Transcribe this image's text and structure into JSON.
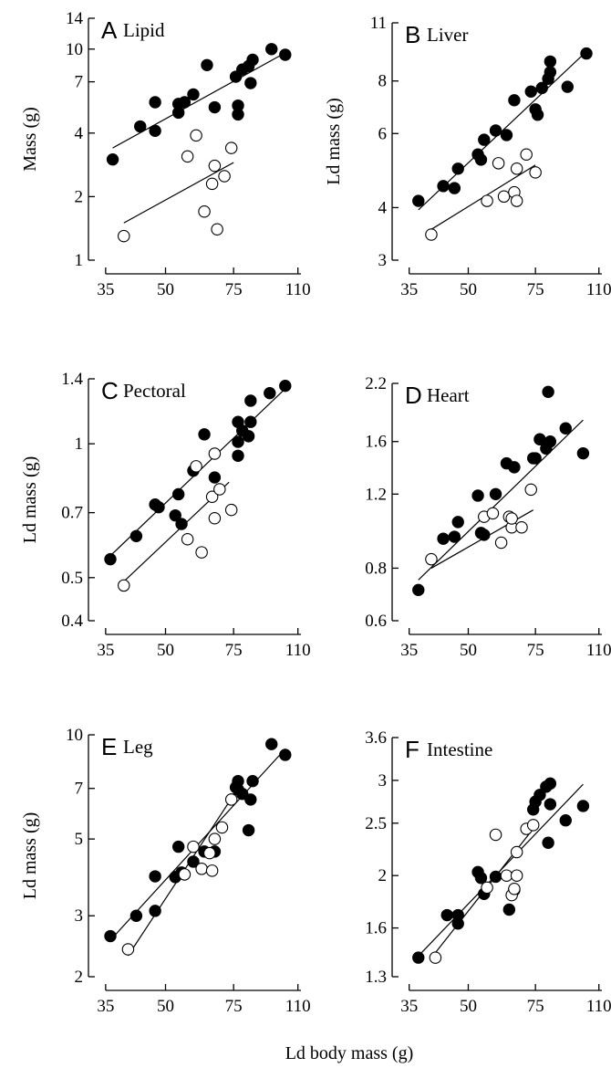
{
  "figure": {
    "shared_xlabel": "Ld body mass (g)"
  },
  "chart_data": [
    {
      "type": "scatter",
      "panel_letter": "A",
      "panel_name": "Lipid",
      "ylabel": "Mass (g)",
      "x_scale": "log",
      "y_scale": "log",
      "xlim": [
        33,
        112
      ],
      "ylim": [
        1,
        14
      ],
      "x_ticks": [
        35,
        50,
        75,
        110
      ],
      "y_ticks": [
        1,
        2,
        4,
        7,
        10,
        14
      ],
      "series": [
        {
          "marker": "filled",
          "points": [
            [
              36.5,
              3.0
            ],
            [
              43,
              4.3
            ],
            [
              47,
              5.6
            ],
            [
              47,
              4.1
            ],
            [
              54,
              5.5
            ],
            [
              54,
              5.0
            ],
            [
              56,
              5.6
            ],
            [
              59,
              6.1
            ],
            [
              64,
              8.4
            ],
            [
              67,
              5.3
            ],
            [
              76,
              7.4
            ],
            [
              77,
              5.4
            ],
            [
              77,
              4.9
            ],
            [
              79,
              8.0
            ],
            [
              82,
              8.3
            ],
            [
              83,
              6.9
            ],
            [
              84,
              8.9
            ],
            [
              94,
              10.0
            ],
            [
              102,
              9.4
            ]
          ],
          "fit": [
            [
              36.5,
              3.4
            ],
            [
              102,
              9.6
            ]
          ]
        },
        {
          "marker": "open",
          "points": [
            [
              39,
              1.3
            ],
            [
              57,
              3.1
            ],
            [
              60,
              3.9
            ],
            [
              63,
              1.7
            ],
            [
              66,
              2.3
            ],
            [
              67,
              2.8
            ],
            [
              68,
              1.4
            ],
            [
              71,
              2.5
            ],
            [
              74,
              3.4
            ]
          ],
          "fit": [
            [
              39,
              1.5
            ],
            [
              75,
              2.9
            ]
          ]
        }
      ]
    },
    {
      "type": "scatter",
      "panel_letter": "B",
      "panel_name": "Liver",
      "ylabel": "Ld  mass (g)",
      "x_scale": "log",
      "y_scale": "log",
      "xlim": [
        33,
        112
      ],
      "ylim": [
        3,
        11
      ],
      "x_ticks": [
        35,
        50,
        75,
        110
      ],
      "y_ticks": [
        3,
        4,
        6,
        8,
        11
      ],
      "series": [
        {
          "marker": "filled",
          "points": [
            [
              37,
              4.15
            ],
            [
              43,
              4.5
            ],
            [
              46,
              4.45
            ],
            [
              47,
              4.95
            ],
            [
              53,
              5.35
            ],
            [
              54,
              5.2
            ],
            [
              55,
              5.8
            ],
            [
              59,
              6.1
            ],
            [
              63,
              5.95
            ],
            [
              66,
              7.2
            ],
            [
              73,
              7.55
            ],
            [
              75,
              6.85
            ],
            [
              76,
              6.65
            ],
            [
              78,
              7.7
            ],
            [
              81,
              8.1
            ],
            [
              82,
              8.9
            ],
            [
              82,
              8.4
            ],
            [
              91,
              7.75
            ],
            [
              102,
              9.3
            ]
          ],
          "fit": [
            [
              37,
              3.95
            ],
            [
              102,
              9.4
            ]
          ]
        },
        {
          "marker": "open",
          "points": [
            [
              40,
              3.45
            ],
            [
              56,
              4.15
            ],
            [
              60,
              5.1
            ],
            [
              62,
              4.25
            ],
            [
              66,
              4.35
            ],
            [
              67,
              4.15
            ],
            [
              67,
              4.95
            ],
            [
              71,
              5.35
            ],
            [
              75,
              4.85
            ]
          ],
          "fit": [
            [
              40,
              3.55
            ],
            [
              75,
              5.05
            ]
          ]
        }
      ]
    },
    {
      "type": "scatter",
      "panel_letter": "C",
      "panel_name": "Pectoral",
      "ylabel": "Ld mass (g)",
      "x_scale": "log",
      "y_scale": "log",
      "xlim": [
        33,
        112
      ],
      "ylim": [
        0.4,
        1.4
      ],
      "x_ticks": [
        35,
        50,
        75,
        110
      ],
      "y_ticks": [
        0.4,
        0.5,
        0.7,
        1.0,
        1.4
      ],
      "series": [
        {
          "marker": "filled",
          "points": [
            [
              36,
              0.55
            ],
            [
              42,
              0.62
            ],
            [
              47,
              0.73
            ],
            [
              48,
              0.72
            ],
            [
              53,
              0.69
            ],
            [
              54,
              0.77
            ],
            [
              55,
              0.66
            ],
            [
              59,
              0.87
            ],
            [
              63,
              1.05
            ],
            [
              67,
              0.84
            ],
            [
              77,
              1.01
            ],
            [
              77,
              0.94
            ],
            [
              77,
              1.12
            ],
            [
              79,
              1.07
            ],
            [
              82,
              1.04
            ],
            [
              83,
              1.12
            ],
            [
              83,
              1.25
            ],
            [
              93,
              1.3
            ],
            [
              102,
              1.35
            ]
          ],
          "fit": [
            [
              36,
              0.56
            ],
            [
              102,
              1.33
            ]
          ]
        },
        {
          "marker": "open",
          "points": [
            [
              39,
              0.48
            ],
            [
              57,
              0.61
            ],
            [
              60,
              0.89
            ],
            [
              62,
              0.57
            ],
            [
              66,
              0.76
            ],
            [
              67,
              0.68
            ],
            [
              67,
              0.95
            ],
            [
              69,
              0.79
            ],
            [
              74,
              0.71
            ]
          ],
          "fit": [
            [
              39,
              0.49
            ],
            [
              73,
              0.82
            ]
          ]
        }
      ]
    },
    {
      "type": "scatter",
      "panel_letter": "D",
      "panel_name": "Heart",
      "x_scale": "log",
      "y_scale": "log",
      "xlim": [
        33,
        112
      ],
      "ylim": [
        0.6,
        2.2
      ],
      "x_ticks": [
        35,
        50,
        75,
        110
      ],
      "y_ticks": [
        0.6,
        0.8,
        1.2,
        1.6,
        2.2
      ],
      "y_tick_labels": [
        "0.6",
        "0.8",
        "1.2",
        "1.6",
        "2.2"
      ],
      "series": [
        {
          "marker": "filled",
          "points": [
            [
              37,
              0.71
            ],
            [
              43,
              0.94
            ],
            [
              46,
              0.95
            ],
            [
              47,
              1.03
            ],
            [
              53,
              1.19
            ],
            [
              54,
              0.97
            ],
            [
              55,
              0.96
            ],
            [
              59,
              1.2
            ],
            [
              63,
              1.42
            ],
            [
              66,
              1.39
            ],
            [
              74,
              1.46
            ],
            [
              75,
              1.46
            ],
            [
              77,
              1.62
            ],
            [
              80,
              1.54
            ],
            [
              81,
              2.1
            ],
            [
              82,
              1.6
            ],
            [
              90,
              1.72
            ],
            [
              100,
              1.5
            ]
          ],
          "fit": [
            [
              37,
              0.75
            ],
            [
              100,
              1.8
            ]
          ]
        },
        {
          "marker": "open",
          "points": [
            [
              40,
              0.84
            ],
            [
              55,
              1.06
            ],
            [
              58,
              1.08
            ],
            [
              61,
              0.92
            ],
            [
              64,
              1.06
            ],
            [
              65,
              1.0
            ],
            [
              65,
              1.05
            ],
            [
              69,
              1.0
            ],
            [
              73,
              1.23
            ]
          ],
          "fit": [
            [
              40,
              0.8
            ],
            [
              74,
              1.1
            ]
          ]
        }
      ]
    },
    {
      "type": "scatter",
      "panel_letter": "E",
      "panel_name": "Leg",
      "ylabel": "Ld mass (g)",
      "x_scale": "log",
      "y_scale": "log",
      "xlim": [
        33,
        112
      ],
      "ylim": [
        2,
        10
      ],
      "x_ticks": [
        35,
        50,
        75,
        110
      ],
      "y_ticks": [
        2,
        3,
        5,
        7,
        10
      ],
      "series": [
        {
          "marker": "filled",
          "points": [
            [
              36,
              2.62
            ],
            [
              42,
              3.0
            ],
            [
              47,
              3.1
            ],
            [
              47,
              3.9
            ],
            [
              53,
              3.88
            ],
            [
              54,
              4.75
            ],
            [
              55,
              4.0
            ],
            [
              59,
              4.3
            ],
            [
              63,
              4.6
            ],
            [
              67,
              4.6
            ],
            [
              76,
              7.05
            ],
            [
              77,
              7.35
            ],
            [
              77,
              6.95
            ],
            [
              79,
              6.75
            ],
            [
              82,
              5.3
            ],
            [
              83,
              6.5
            ],
            [
              84,
              7.35
            ],
            [
              94,
              9.4
            ],
            [
              102,
              8.75
            ]
          ],
          "fit": [
            [
              36,
              2.55
            ],
            [
              102,
              9.1
            ]
          ]
        },
        {
          "marker": "open",
          "points": [
            [
              40,
              2.4
            ],
            [
              56,
              3.95
            ],
            [
              59,
              4.75
            ],
            [
              62,
              4.1
            ],
            [
              65,
              4.55
            ],
            [
              66,
              4.05
            ],
            [
              67,
              5.0
            ],
            [
              70,
              5.4
            ],
            [
              74,
              6.5
            ]
          ],
          "fit": [
            [
              40,
              2.3
            ],
            [
              77,
              7.0
            ]
          ]
        }
      ]
    },
    {
      "type": "scatter",
      "panel_letter": "F",
      "panel_name": "Intestine",
      "x_scale": "log",
      "y_scale": "log",
      "xlim": [
        33,
        112
      ],
      "ylim": [
        1.3,
        3.6
      ],
      "x_ticks": [
        35,
        50,
        75,
        110
      ],
      "y_ticks": [
        1.3,
        1.6,
        2.0,
        2.5,
        3.0,
        3.6
      ],
      "series": [
        {
          "marker": "filled",
          "points": [
            [
              37,
              1.41
            ],
            [
              44,
              1.69
            ],
            [
              47,
              1.69
            ],
            [
              47,
              1.63
            ],
            [
              53,
              2.03
            ],
            [
              54,
              1.98
            ],
            [
              55,
              1.85
            ],
            [
              59,
              1.99
            ],
            [
              64,
              1.73
            ],
            [
              66,
              1.88
            ],
            [
              74,
              2.65
            ],
            [
              75,
              2.74
            ],
            [
              77,
              2.82
            ],
            [
              80,
              2.92
            ],
            [
              81,
              2.3
            ],
            [
              82,
              2.96
            ],
            [
              82,
              2.71
            ],
            [
              90,
              2.53
            ],
            [
              100,
              2.69
            ]
          ],
          "fit": [
            [
              37,
              1.42
            ],
            [
              100,
              2.95
            ]
          ]
        },
        {
          "marker": "open",
          "points": [
            [
              41,
              1.41
            ],
            [
              56,
              1.9
            ],
            [
              59,
              2.38
            ],
            [
              63,
              2.0
            ],
            [
              65,
              1.84
            ],
            [
              66,
              1.89
            ],
            [
              67,
              2.0
            ],
            [
              67,
              2.21
            ],
            [
              71,
              2.44
            ],
            [
              74,
              2.48
            ]
          ],
          "fit": [
            [
              41,
              1.44
            ],
            [
              76,
              2.5
            ]
          ]
        }
      ]
    }
  ]
}
